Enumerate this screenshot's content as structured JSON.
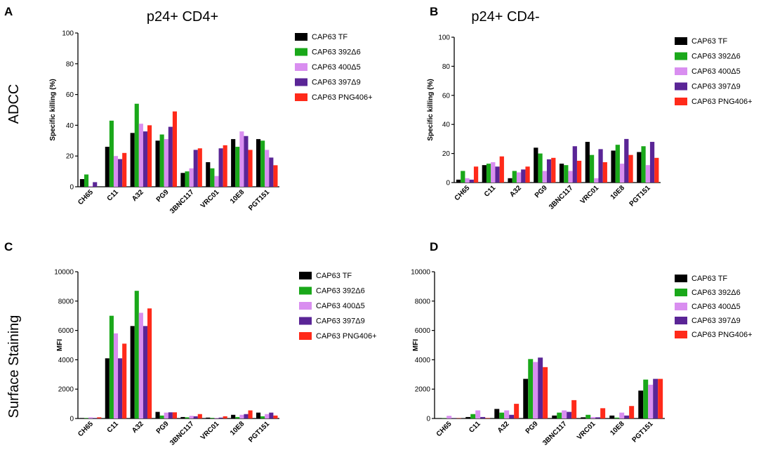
{
  "figure": {
    "col_titles": [
      "p24+ CD4+",
      "p24+ CD4-"
    ],
    "row_titles": [
      "ADCC",
      "Surface Staining"
    ],
    "panel_letters": [
      "A",
      "B",
      "C",
      "D"
    ]
  },
  "series_colors": [
    "#000000",
    "#1aa81a",
    "#d98ef0",
    "#5a2596",
    "#ff2a1a"
  ],
  "chart_data": [
    {
      "panel": "A",
      "type": "bar",
      "title": "",
      "xlabel": "",
      "ylabel": "Specific killing (%)",
      "ylim": [
        0,
        100
      ],
      "yticks": [
        0,
        20,
        40,
        60,
        80,
        100
      ],
      "categories": [
        "CH65",
        "C11",
        "A32",
        "PG9",
        "3BNC117",
        "VRC01",
        "10E8",
        "PGT151"
      ],
      "legend_position": "right",
      "series": [
        {
          "name": "CAP63 TF",
          "values": [
            5,
            26,
            35,
            30,
            9,
            16,
            31,
            31
          ]
        },
        {
          "name": "CAP63 392Δ6",
          "values": [
            8,
            43,
            54,
            34,
            10,
            12,
            26,
            30
          ]
        },
        {
          "name": "CAP63 400Δ5",
          "values": [
            0.5,
            20,
            41,
            31,
            12,
            7,
            36,
            24
          ]
        },
        {
          "name": "CAP63 397Δ9",
          "values": [
            3,
            18,
            36,
            39,
            24,
            25,
            33,
            19
          ]
        },
        {
          "name": "CAP63 PNG406+",
          "values": [
            0,
            22,
            40,
            49,
            25,
            27,
            24,
            14
          ]
        }
      ]
    },
    {
      "panel": "B",
      "type": "bar",
      "title": "",
      "xlabel": "",
      "ylabel": "Specific killing (%)",
      "ylim": [
        0,
        100
      ],
      "yticks": [
        0,
        20,
        40,
        60,
        80,
        100
      ],
      "categories": [
        "CH65",
        "C11",
        "A32",
        "PG9",
        "3BNC117",
        "VRC01",
        "10E8",
        "PGT151"
      ],
      "legend_position": "right",
      "series": [
        {
          "name": "CAP63 TF",
          "values": [
            2,
            12,
            3,
            24,
            13,
            28,
            22,
            21
          ]
        },
        {
          "name": "CAP63 392Δ6",
          "values": [
            8,
            13,
            8,
            20,
            12,
            19,
            26,
            25
          ]
        },
        {
          "name": "CAP63 400Δ5",
          "values": [
            3,
            14,
            7,
            8,
            8,
            3,
            13,
            12
          ]
        },
        {
          "name": "CAP63 397Δ9",
          "values": [
            2,
            11,
            9,
            16,
            25,
            23,
            30,
            28
          ]
        },
        {
          "name": "CAP63 PNG406+",
          "values": [
            11,
            18,
            11,
            17,
            15,
            14,
            19,
            17
          ]
        }
      ]
    },
    {
      "panel": "C",
      "type": "bar",
      "title": "",
      "xlabel": "",
      "ylabel": "MFI",
      "ylim": [
        0,
        10000
      ],
      "yticks": [
        0,
        2000,
        4000,
        6000,
        8000,
        10000
      ],
      "categories": [
        "CH65",
        "C11",
        "A32",
        "PG9",
        "3BNC117",
        "VRC01",
        "10E8",
        "PGT151"
      ],
      "legend_position": "right",
      "series": [
        {
          "name": "CAP63 TF",
          "values": [
            30,
            4100,
            6300,
            450,
            100,
            60,
            250,
            400
          ]
        },
        {
          "name": "CAP63 392Δ6",
          "values": [
            30,
            7000,
            8700,
            200,
            80,
            40,
            100,
            150
          ]
        },
        {
          "name": "CAP63 400Δ5",
          "values": [
            80,
            5800,
            7200,
            400,
            180,
            40,
            250,
            300
          ]
        },
        {
          "name": "CAP63 397Δ9",
          "values": [
            30,
            4100,
            6300,
            420,
            150,
            60,
            300,
            400
          ]
        },
        {
          "name": "CAP63 PNG406+",
          "values": [
            80,
            5100,
            7500,
            420,
            300,
            150,
            550,
            200
          ]
        }
      ]
    },
    {
      "panel": "D",
      "type": "bar",
      "title": "",
      "xlabel": "",
      "ylabel": "MFI",
      "ylim": [
        0,
        10000
      ],
      "yticks": [
        0,
        2000,
        4000,
        6000,
        8000,
        10000
      ],
      "categories": [
        "CH65",
        "C11",
        "A32",
        "PG9",
        "3BNC117",
        "VRC01",
        "10E8",
        "PGT151"
      ],
      "legend_position": "right",
      "series": [
        {
          "name": "CAP63 TF",
          "values": [
            20,
            100,
            650,
            2700,
            200,
            80,
            200,
            1900
          ]
        },
        {
          "name": "CAP63 392Δ6",
          "values": [
            20,
            300,
            400,
            4050,
            400,
            250,
            60,
            2650
          ]
        },
        {
          "name": "CAP63 400Δ5",
          "values": [
            180,
            550,
            550,
            3850,
            550,
            100,
            400,
            2300
          ]
        },
        {
          "name": "CAP63 397Δ9",
          "values": [
            20,
            100,
            250,
            4150,
            450,
            80,
            200,
            2700
          ]
        },
        {
          "name": "CAP63 PNG406+",
          "values": [
            20,
            30,
            1000,
            3500,
            1250,
            700,
            850,
            2700
          ]
        }
      ]
    }
  ]
}
